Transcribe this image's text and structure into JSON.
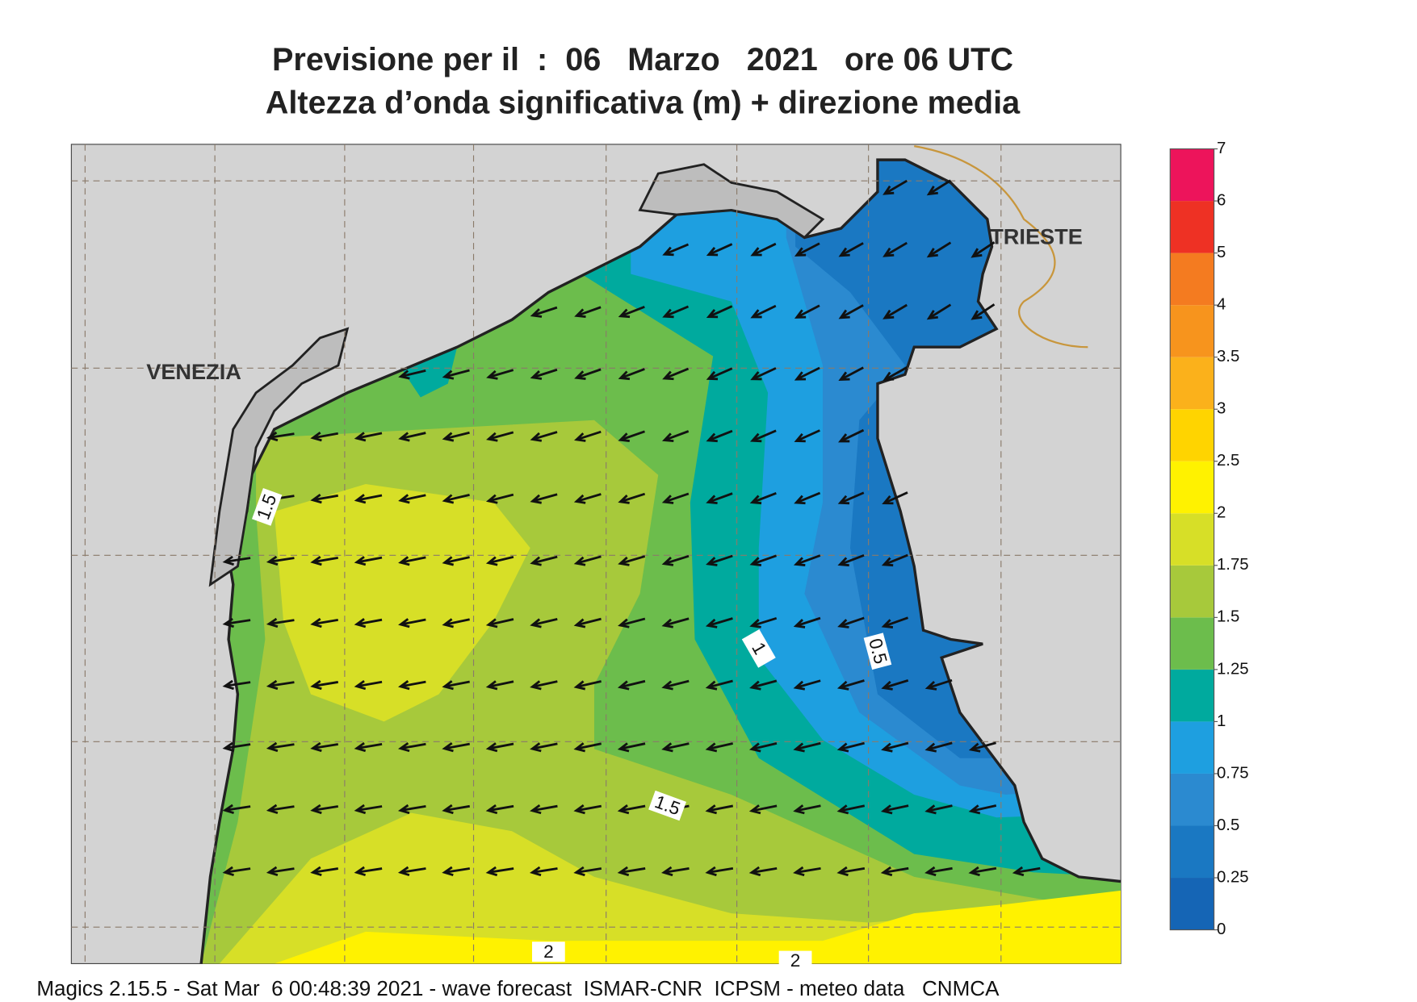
{
  "header": {
    "title": "Previsione per il  :  06   Marzo   2021   ore 06 UTC",
    "subtitle": "Altezza d’onda significativa (m) + direzione media"
  },
  "map": {
    "places": [
      "VENEZIA",
      "TRIESTE"
    ],
    "contour_labels": [
      1.5,
      1,
      0.5,
      1.5,
      2,
      2
    ]
  },
  "colorbar": {
    "levels": [
      0,
      0.25,
      0.5,
      0.75,
      1,
      1.25,
      1.5,
      1.75,
      2,
      2.5,
      3,
      3.5,
      4,
      5,
      6,
      7
    ],
    "colors": [
      "#1565b5",
      "#1a78c2",
      "#2b8ad0",
      "#1e9fe0",
      "#00aa9e",
      "#6cbd4c",
      "#a7c93b",
      "#d7df27",
      "#fff200",
      "#ffd400",
      "#fbb11b",
      "#f7941d",
      "#f47b20",
      "#ee3124",
      "#ed145b"
    ]
  },
  "footer": "Magics 2.15.5 - Sat Mar  6 00:48:39 2021 - wave forecast  ISMAR-CNR  ICPSM - meteo data   CNMCA"
}
